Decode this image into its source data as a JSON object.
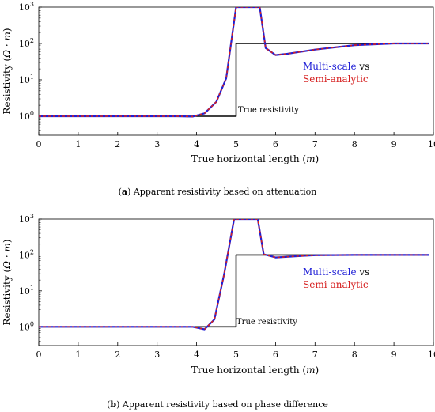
{
  "figure": {
    "panels": [
      {
        "letter": "a",
        "caption_text": "Apparent resistivity based on attenuation"
      },
      {
        "letter": "b",
        "caption_text": "Apparent resistivity based on phase difference"
      }
    ]
  },
  "chart_data": [
    {
      "type": "line",
      "title": "",
      "xlabel": "True horizontal length",
      "xlabel_unit": "m",
      "ylabel": "Resistivity",
      "ylabel_unit": "Ω · m",
      "xlim": [
        0,
        10
      ],
      "ylim": [
        0.3,
        1000
      ],
      "yscale": "log",
      "grid": false,
      "x_ticks": [
        0,
        1,
        2,
        3,
        4,
        5,
        6,
        7,
        8,
        9,
        10
      ],
      "y_ticks": [
        {
          "value": 1,
          "base": "10",
          "exp": "0"
        },
        {
          "value": 10,
          "base": "10",
          "exp": "1"
        },
        {
          "value": 100,
          "base": "10",
          "exp": "2"
        },
        {
          "value": 1000,
          "base": "10",
          "exp": "3"
        }
      ],
      "legend": {
        "placement": "right",
        "entries": [
          {
            "text": "Multi-scale",
            "color": "#1f1fd6"
          },
          {
            "text": " vs",
            "color": "#000000"
          },
          {
            "text": "Semi-analytic",
            "color": "#d62020"
          }
        ]
      },
      "annotation": "True resistivity",
      "series": [
        {
          "role": "true",
          "color": "#000000",
          "x": [
            0,
            5,
            5,
            9.9
          ],
          "y": [
            1,
            1,
            100,
            100
          ]
        },
        {
          "role": "multi-scale",
          "color": "#1f1fd6",
          "x": [
            0,
            3.5,
            3.9,
            4.2,
            4.5,
            4.75,
            5.0,
            5.6,
            5.75,
            6.0,
            6.3,
            7.0,
            8.0,
            9.0,
            9.9
          ],
          "y": [
            1,
            1,
            0.98,
            1.2,
            2.5,
            11,
            1000,
            1000,
            75,
            48,
            52,
            68,
            90,
            100,
            100
          ]
        },
        {
          "role": "semi-analytic",
          "color": "#d62020",
          "dash": true,
          "x": [
            0,
            3.5,
            3.9,
            4.2,
            4.5,
            4.75,
            5.0,
            5.6,
            5.75,
            6.0,
            6.3,
            7.0,
            8.0,
            9.0,
            9.9
          ],
          "y": [
            1,
            1,
            0.98,
            1.2,
            2.5,
            11,
            1000,
            1000,
            75,
            48,
            52,
            68,
            90,
            100,
            100
          ]
        }
      ]
    },
    {
      "type": "line",
      "title": "",
      "xlabel": "True horizontal length",
      "xlabel_unit": "m",
      "ylabel": "Resistivity",
      "ylabel_unit": "Ω · m",
      "xlim": [
        0,
        10
      ],
      "ylim": [
        0.3,
        1000
      ],
      "yscale": "log",
      "grid": false,
      "x_ticks": [
        0,
        1,
        2,
        3,
        4,
        5,
        6,
        7,
        8,
        9,
        10
      ],
      "y_ticks": [
        {
          "value": 1,
          "base": "10",
          "exp": "0"
        },
        {
          "value": 10,
          "base": "10",
          "exp": "1"
        },
        {
          "value": 100,
          "base": "10",
          "exp": "2"
        },
        {
          "value": 1000,
          "base": "10",
          "exp": "3"
        }
      ],
      "legend": {
        "placement": "right",
        "entries": [
          {
            "text": "Multi-scale",
            "color": "#1f1fd6"
          },
          {
            "text": " vs",
            "color": "#000000"
          },
          {
            "text": "Semi-analytic",
            "color": "#d62020"
          }
        ]
      },
      "annotation": "True resistivity",
      "series": [
        {
          "role": "true",
          "color": "#000000",
          "x": [
            0,
            5,
            5,
            9.9
          ],
          "y": [
            1,
            1,
            100,
            100
          ]
        },
        {
          "role": "multi-scale",
          "color": "#1f1fd6",
          "x": [
            0,
            3.5,
            3.9,
            4.2,
            4.45,
            4.7,
            4.95,
            5.55,
            5.7,
            6.0,
            6.5,
            7.0,
            8.0,
            9.0,
            9.9
          ],
          "y": [
            1,
            1,
            1,
            0.85,
            1.6,
            30,
            1000,
            1000,
            105,
            85,
            92,
            98,
            100,
            100,
            100
          ]
        },
        {
          "role": "semi-analytic",
          "color": "#d62020",
          "dash": true,
          "x": [
            0,
            3.5,
            3.9,
            4.2,
            4.45,
            4.7,
            4.95,
            5.55,
            5.7,
            6.0,
            6.5,
            7.0,
            8.0,
            9.0,
            9.9
          ],
          "y": [
            1,
            1,
            1,
            0.85,
            1.6,
            30,
            1000,
            1000,
            105,
            85,
            92,
            98,
            100,
            100,
            100
          ]
        }
      ]
    }
  ]
}
